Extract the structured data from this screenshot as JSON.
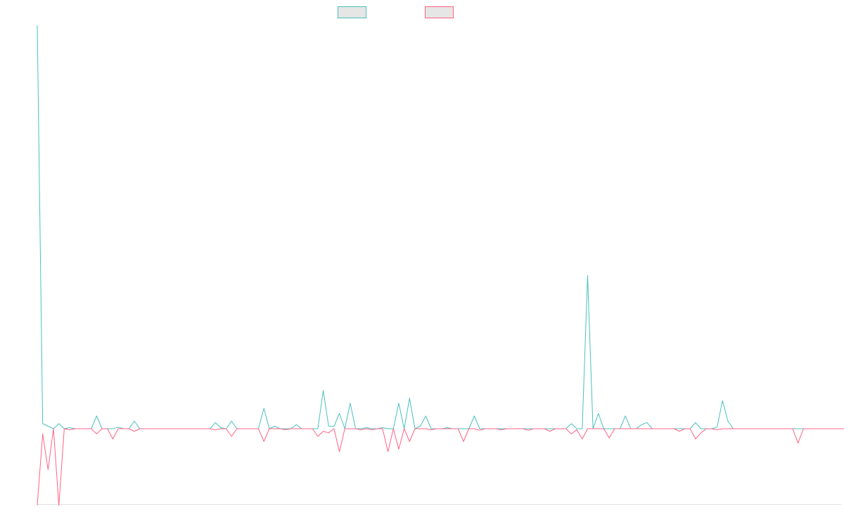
{
  "chart_data": {
    "type": "line",
    "title": "",
    "xlabel": "",
    "ylabel": "",
    "legend_position": "top-center",
    "grid": false,
    "x_ticks_shown": false,
    "y_ticks_shown": false,
    "ylim": [
      -1.5,
      8
    ],
    "n_points": 150,
    "series": [
      {
        "color": "#4bc0c0",
        "values": [
          7.9,
          0.1,
          0.05,
          0,
          0.1,
          0,
          0.02,
          0,
          0,
          0,
          0,
          0.25,
          0,
          0,
          0,
          0.03,
          0,
          0,
          0.15,
          0,
          0,
          0,
          0,
          0,
          0,
          0,
          0,
          0,
          0,
          0,
          0,
          0,
          0,
          0.12,
          0.02,
          0,
          0.15,
          0,
          0,
          0,
          0,
          0,
          0.4,
          0,
          0.05,
          0,
          0,
          0,
          0.08,
          0,
          0,
          0,
          0,
          0.75,
          0.05,
          0.05,
          0.3,
          0,
          0.5,
          0,
          0,
          0.02,
          0,
          0,
          0.02,
          0,
          0,
          0.5,
          0,
          0.6,
          0,
          0.05,
          0.25,
          0,
          0,
          0,
          0.02,
          0,
          0,
          0,
          0,
          0.25,
          0,
          0,
          0,
          0,
          0,
          0,
          0,
          0,
          0,
          0,
          0,
          0,
          0,
          0,
          0,
          0,
          0,
          0.1,
          0,
          0,
          3.0,
          0,
          0.3,
          0,
          0,
          0,
          0,
          0.25,
          0,
          0,
          0.08,
          0.12,
          0,
          0,
          0,
          0,
          0,
          0,
          0,
          0,
          0.12,
          0,
          0,
          0,
          0.03,
          0.55,
          0.15,
          0,
          0,
          0,
          0,
          0,
          0,
          0,
          0,
          0,
          0,
          0,
          0,
          0,
          0,
          0,
          0,
          0,
          0,
          0,
          0,
          0,
          0,
          0.02,
          0,
          0,
          0,
          0,
          0,
          0,
          0,
          0,
          0.02,
          0.05
        ]
      },
      {
        "color": "#ff6384",
        "values": [
          -1.5,
          -0.1,
          -0.8,
          0,
          -1.5,
          0,
          -0.02,
          0,
          0,
          0,
          0,
          -0.1,
          0,
          0,
          -0.2,
          0,
          0,
          0,
          -0.05,
          0,
          0,
          0,
          0,
          0,
          0,
          0,
          0,
          0,
          0,
          0,
          0,
          0,
          0,
          -0.02,
          0,
          0,
          -0.15,
          0,
          0,
          0,
          0,
          0,
          -0.25,
          0,
          0,
          0,
          -0.02,
          0,
          0,
          0,
          0,
          0,
          -0.15,
          -0.05,
          -0.08,
          0,
          -0.45,
          0,
          0,
          0,
          -0.02,
          0,
          -0.02,
          0,
          0,
          -0.45,
          0,
          -0.4,
          0,
          -0.25,
          0,
          0,
          0,
          -0.02,
          0,
          0,
          0,
          0,
          0,
          -0.25,
          0,
          0,
          -0.03,
          0,
          0,
          0,
          -0.02,
          0,
          0,
          0,
          0,
          -0.03,
          0,
          0,
          0,
          -0.05,
          0,
          0,
          0,
          -0.1,
          -0.02,
          -0.2,
          0,
          0,
          0,
          0,
          -0.18,
          0,
          0,
          0,
          0,
          0,
          0,
          0,
          0,
          0,
          0,
          0,
          0,
          -0.05,
          0,
          0,
          -0.2,
          -0.08,
          0,
          0,
          -0.02,
          0,
          0,
          0,
          0,
          0,
          0,
          0,
          0,
          0,
          0,
          0,
          0,
          0,
          0,
          -0.28,
          0,
          0,
          0,
          0,
          0,
          0,
          0,
          0,
          0,
          0,
          0,
          0,
          -0.02,
          -0.05,
          0
        ]
      }
    ]
  }
}
